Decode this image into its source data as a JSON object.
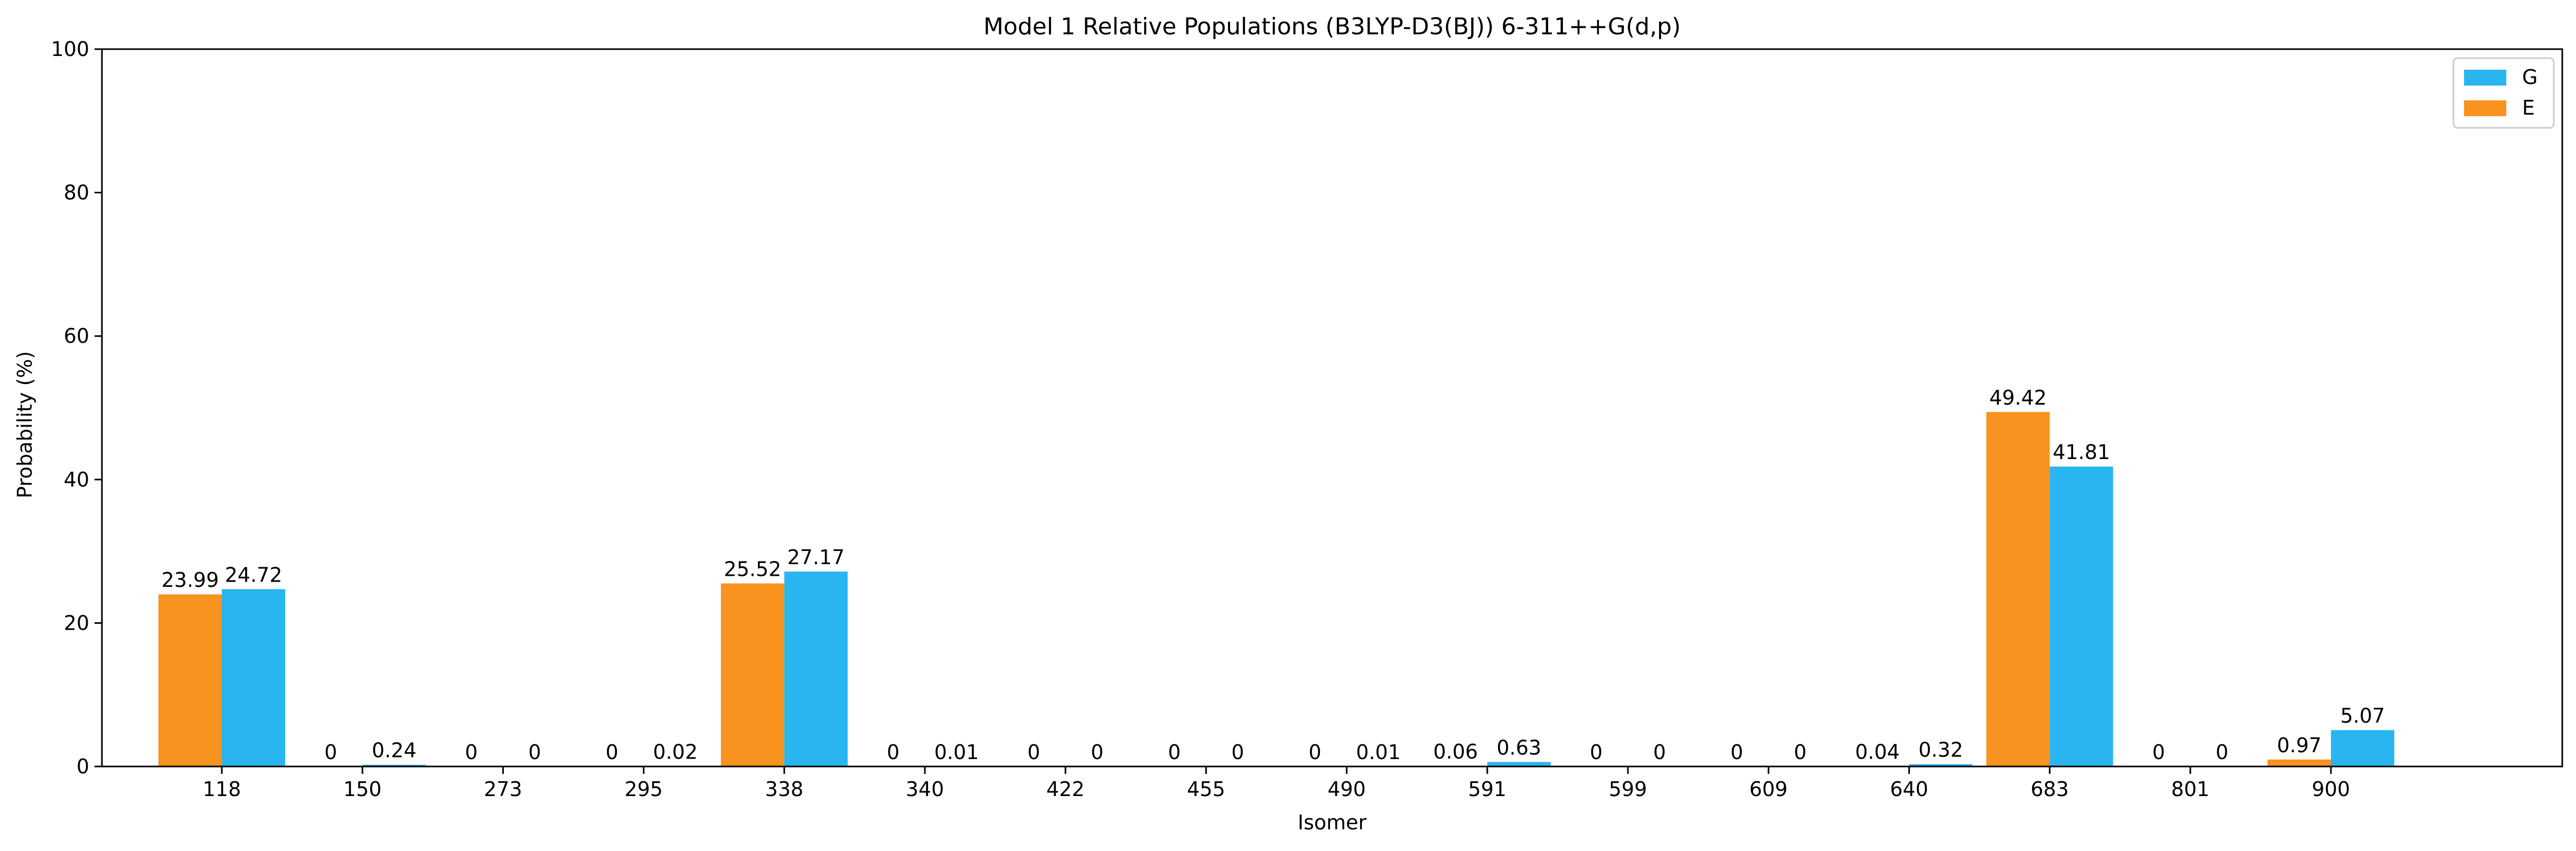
{
  "chart_data": {
    "type": "bar",
    "title": "Model 1 Relative Populations (B3LYP-D3(BJ)) 6-311++G(d,p)",
    "xlabel": "Isomer",
    "ylabel": "Probability (%)",
    "ylim": [
      0,
      100
    ],
    "yticks": [
      0,
      20,
      40,
      60,
      80,
      100
    ],
    "grid": false,
    "legend_position": "top-right",
    "categories": [
      "118",
      "150",
      "273",
      "295",
      "338",
      "340",
      "422",
      "455",
      "490",
      "591",
      "599",
      "609",
      "640",
      "683",
      "801",
      "900"
    ],
    "series": [
      {
        "name": "E",
        "color": "#F7931E",
        "values": [
          23.99,
          0,
          0,
          0,
          25.52,
          0,
          0,
          0,
          0,
          0.06,
          0,
          0,
          0.04,
          49.42,
          0,
          0.97
        ],
        "labels": [
          "23.99",
          "0",
          "0",
          "0",
          "25.52",
          "0",
          "0",
          "0",
          "0",
          "0.06",
          "0",
          "0",
          "0.04",
          "49.42",
          "0",
          "0.97"
        ]
      },
      {
        "name": "G",
        "color": "#29B6F0",
        "values": [
          24.72,
          0.24,
          0,
          0.02,
          27.17,
          0.01,
          0,
          0,
          0.01,
          0.63,
          0,
          0,
          0.32,
          41.81,
          0,
          5.07
        ],
        "labels": [
          "24.72",
          "0.24",
          "0",
          "0.02",
          "27.17",
          "0.01",
          "0",
          "0",
          "0.01",
          "0.63",
          "0",
          "0",
          "0.32",
          "41.81",
          "0",
          "5.07"
        ]
      }
    ],
    "legend_order": [
      "G",
      "E"
    ]
  }
}
